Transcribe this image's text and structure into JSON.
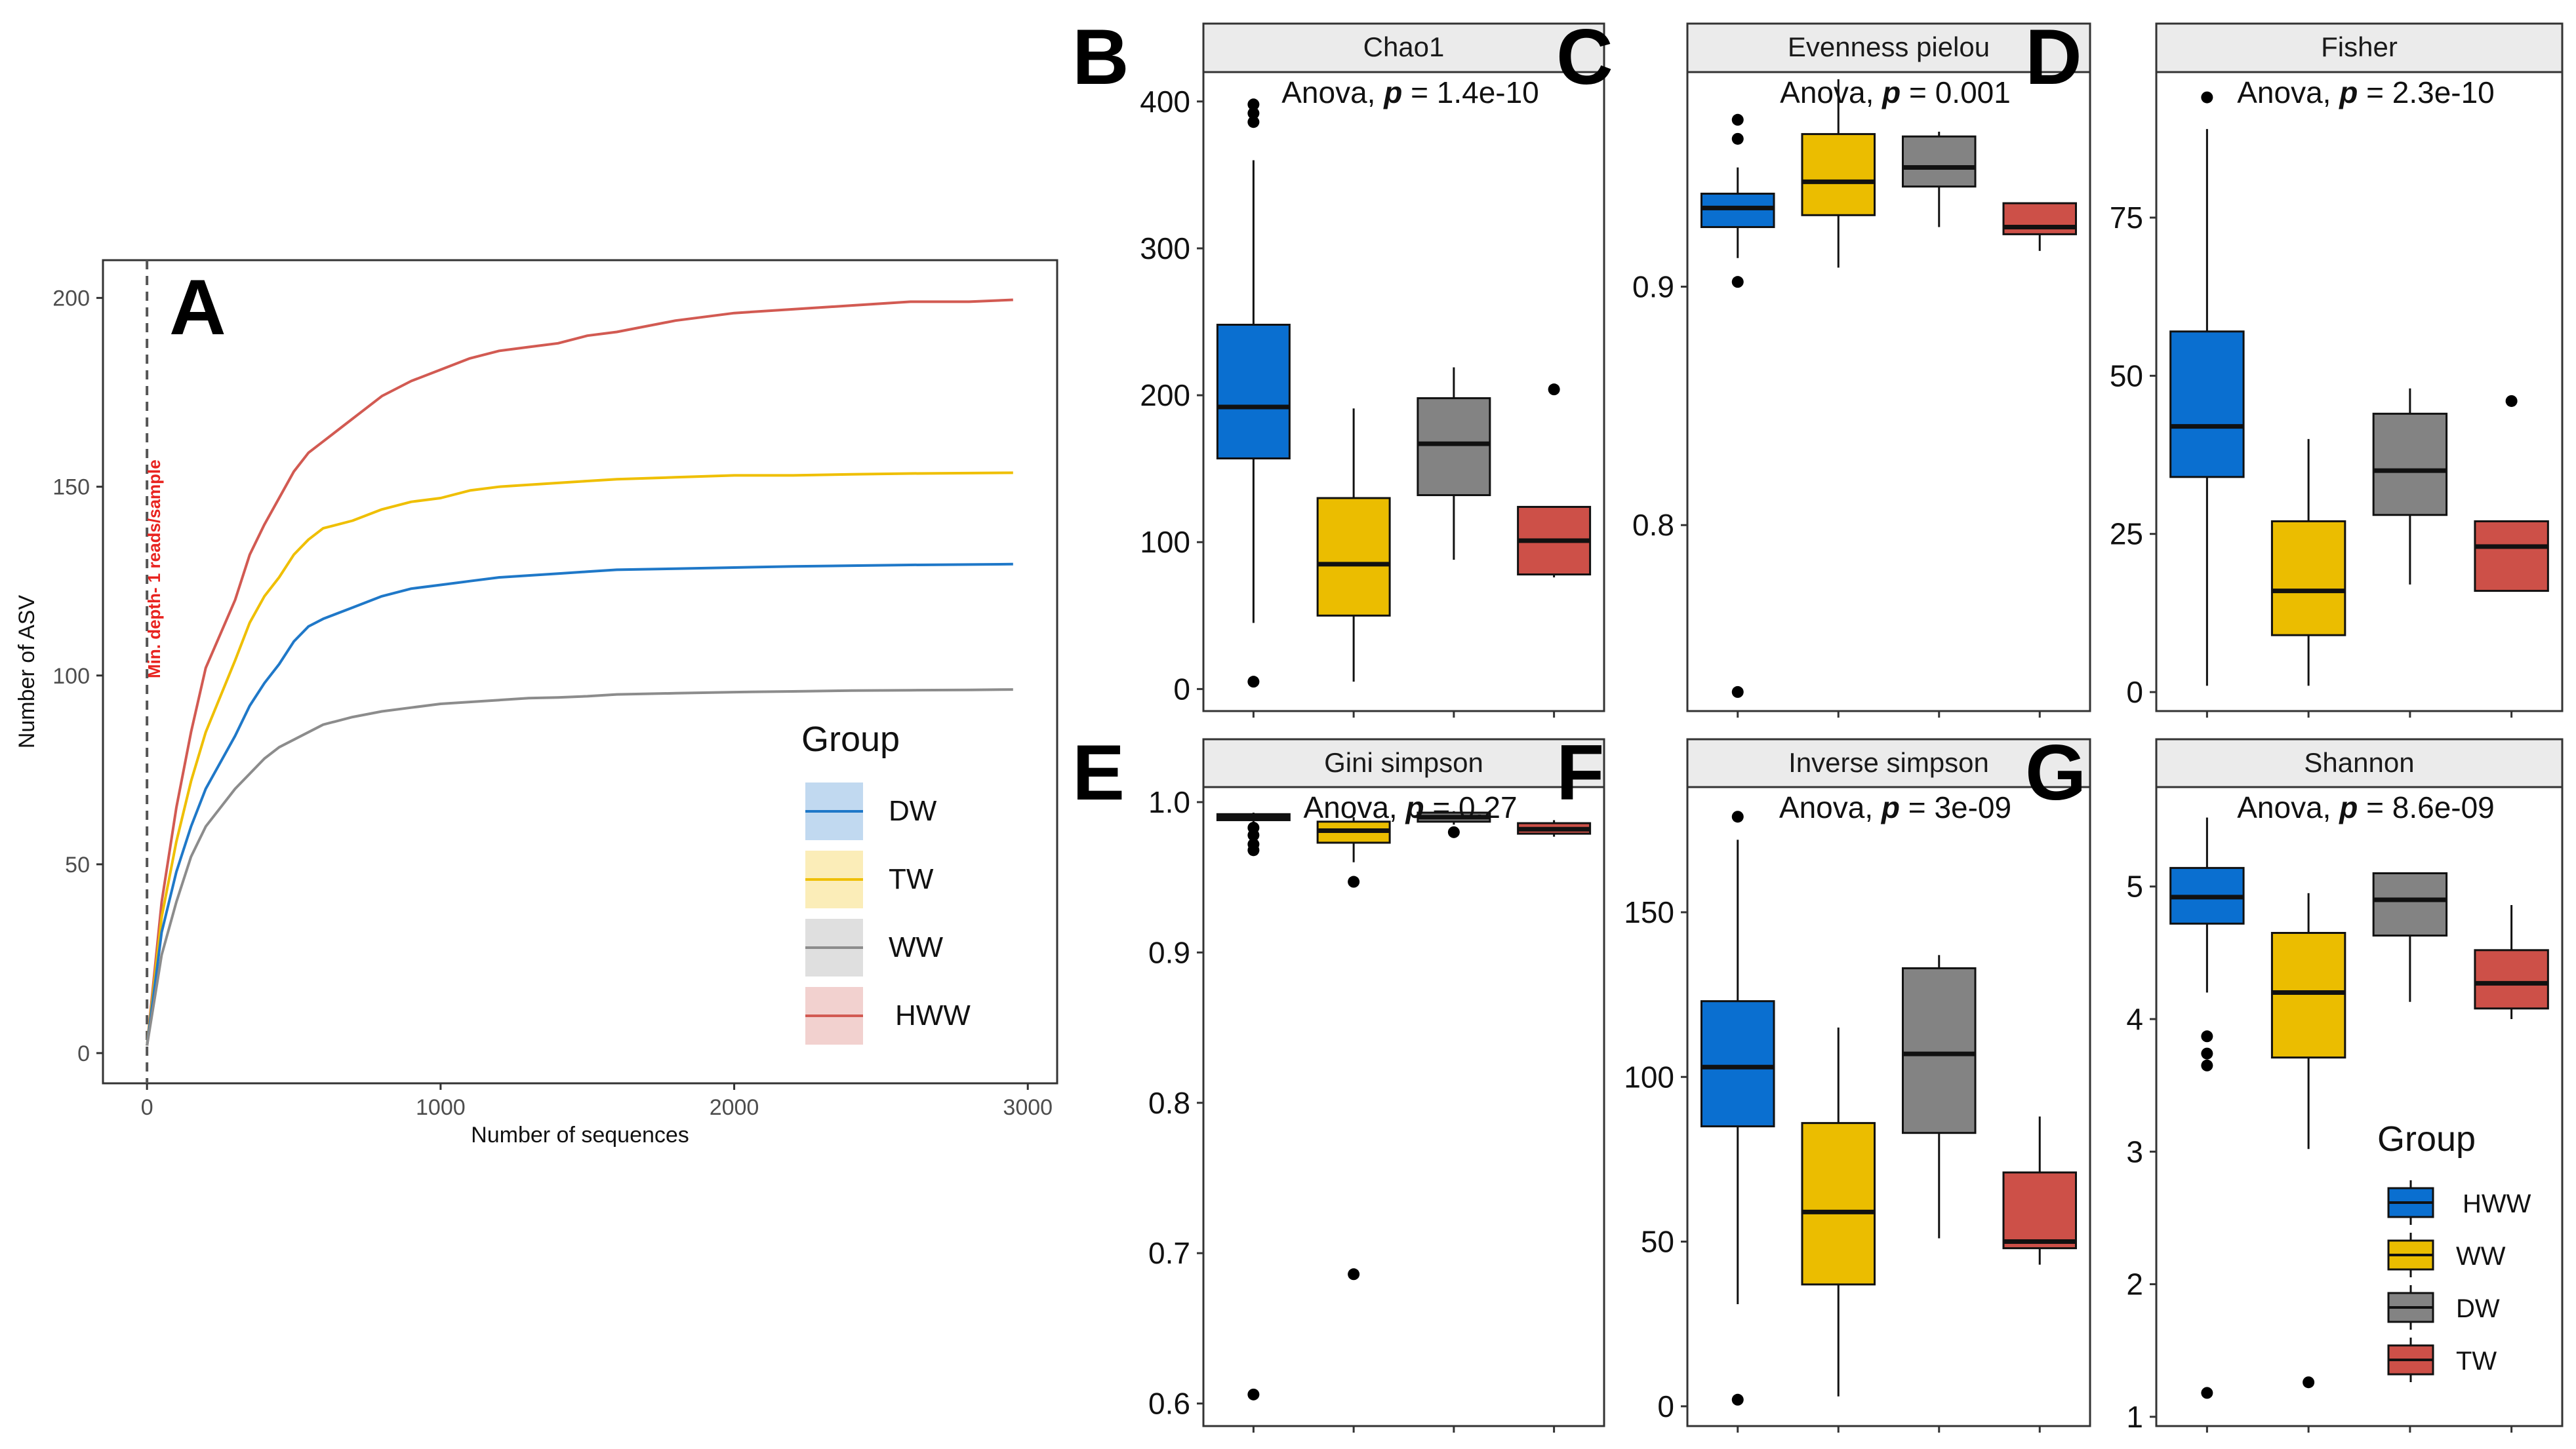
{
  "colors": {
    "DW": "#1f78c8",
    "TW": "#efbf00",
    "WW": "#8c8c8c",
    "HWW": "#d25a52",
    "box_DW": "#0a6fd0",
    "box_TW": "#ebbd00",
    "box_WW": "#838383",
    "box_HWW": "#cd5048",
    "strip": "#ebebeb",
    "vline": "#555555",
    "min_depth_text": "#e8231f"
  },
  "chart_data": [
    {
      "panel": "A",
      "type": "line",
      "xlabel": "Number of sequences",
      "ylabel": "Number of ASV",
      "xlim": [
        -150,
        3100
      ],
      "ylim": [
        -8,
        210
      ],
      "x_ticks": [
        0,
        1000,
        2000,
        3000
      ],
      "y_ticks": [
        0,
        50,
        100,
        150,
        200
      ],
      "x_tick_labels": [
        "0",
        "1000",
        "2000",
        "3000"
      ],
      "y_tick_labels": [
        "0",
        "50",
        "100",
        "150",
        "200"
      ],
      "vline": {
        "x": 0,
        "label": "Min. depth- 1 reads/sample"
      },
      "legend": {
        "title": "Group",
        "position": "bottom-right",
        "entries": [
          "DW",
          "TW",
          "WW",
          "HWW"
        ]
      },
      "x": [
        0,
        50,
        100,
        150,
        200,
        300,
        350,
        400,
        450,
        500,
        550,
        600,
        700,
        800,
        900,
        1000,
        1100,
        1200,
        1300,
        1400,
        1500,
        1600,
        1800,
        2000,
        2200,
        2400,
        2600,
        2800,
        2950
      ],
      "series": [
        {
          "name": "HWW",
          "values": [
            2,
            40,
            65,
            85,
            102,
            120,
            132,
            140,
            147,
            154,
            159,
            162,
            168,
            174,
            178,
            181,
            184,
            186,
            187,
            188,
            190,
            191,
            194,
            196,
            197,
            198,
            199,
            199,
            199.5
          ]
        },
        {
          "name": "TW",
          "values": [
            2,
            36,
            56,
            72,
            85,
            104,
            114,
            121,
            126,
            132,
            136,
            139,
            141,
            144,
            146,
            147,
            149,
            150,
            150.5,
            151,
            151.5,
            152,
            152.5,
            153,
            153,
            153.3,
            153.5,
            153.6,
            153.7
          ]
        },
        {
          "name": "DW",
          "values": [
            2,
            32,
            48,
            60,
            70,
            84,
            92,
            98,
            103,
            109,
            113,
            115,
            118,
            121,
            123,
            124,
            125,
            126,
            126.5,
            127,
            127.5,
            128,
            128.3,
            128.6,
            128.9,
            129.1,
            129.3,
            129.4,
            129.5
          ]
        },
        {
          "name": "WW",
          "values": [
            2,
            26,
            40,
            52,
            60,
            70,
            74,
            78,
            81,
            83,
            85,
            87,
            89,
            90.5,
            91.5,
            92.5,
            93,
            93.5,
            94,
            94.2,
            94.5,
            95,
            95.3,
            95.6,
            95.8,
            96,
            96.1,
            96.2,
            96.3
          ]
        }
      ]
    },
    {
      "panel": "B",
      "type": "box",
      "title": "Chao1",
      "stat_prefix": "Anova, ",
      "p_label": "p",
      "stat_value": " = 1.4e-10",
      "ylim": [
        -15,
        420
      ],
      "y_ticks": [
        0,
        100,
        200,
        300,
        400
      ],
      "y_tick_labels": [
        "0",
        "100",
        "200",
        "300",
        "400"
      ],
      "boxes": [
        {
          "q1": 157,
          "median": 192,
          "q3": 248,
          "wlo": 45,
          "whi": 360,
          "outliers": [
            5,
            386,
            392,
            398
          ]
        },
        {
          "q1": 50,
          "median": 85,
          "q3": 130,
          "wlo": 5,
          "whi": 191,
          "outliers": []
        },
        {
          "q1": 132,
          "median": 167,
          "q3": 198,
          "wlo": 88,
          "whi": 219,
          "outliers": []
        },
        {
          "q1": 78,
          "median": 101,
          "q3": 124,
          "wlo": 76,
          "whi": 124,
          "outliers": [
            204
          ]
        }
      ]
    },
    {
      "panel": "C",
      "type": "box",
      "title": "Evenness pielou",
      "stat_prefix": "Anova, ",
      "p_label": "p",
      "stat_value": " = 0.001",
      "ylim": [
        0.722,
        0.99
      ],
      "y_ticks": [
        0.8,
        0.9
      ],
      "y_tick_labels": [
        "0.8",
        "0.9"
      ],
      "boxes": [
        {
          "q1": 0.925,
          "median": 0.933,
          "q3": 0.939,
          "wlo": 0.912,
          "whi": 0.95,
          "outliers": [
            0.73,
            0.902,
            0.962,
            0.97
          ]
        },
        {
          "q1": 0.93,
          "median": 0.944,
          "q3": 0.964,
          "wlo": 0.908,
          "whi": 0.987,
          "outliers": []
        },
        {
          "q1": 0.942,
          "median": 0.95,
          "q3": 0.963,
          "wlo": 0.925,
          "whi": 0.965,
          "outliers": []
        },
        {
          "q1": 0.922,
          "median": 0.925,
          "q3": 0.935,
          "wlo": 0.915,
          "whi": 0.935,
          "outliers": []
        }
      ]
    },
    {
      "panel": "D",
      "type": "box",
      "title": "Fisher",
      "stat_prefix": "Anova, ",
      "p_label": "p",
      "stat_value": " = 2.3e-10",
      "ylim": [
        -3,
        98
      ],
      "y_ticks": [
        0,
        25,
        50,
        75
      ],
      "y_tick_labels": [
        "0",
        "25",
        "50",
        "75"
      ],
      "boxes": [
        {
          "q1": 34,
          "median": 42,
          "q3": 57,
          "wlo": 1,
          "whi": 89,
          "outliers": [
            94
          ]
        },
        {
          "q1": 9,
          "median": 16,
          "q3": 27,
          "wlo": 1,
          "whi": 40,
          "outliers": []
        },
        {
          "q1": 28,
          "median": 35,
          "q3": 44,
          "wlo": 17,
          "whi": 48,
          "outliers": []
        },
        {
          "q1": 16,
          "median": 23,
          "q3": 27,
          "wlo": 16,
          "whi": 27,
          "outliers": [
            46
          ]
        }
      ]
    },
    {
      "panel": "E",
      "type": "box",
      "title": "Gini simpson",
      "stat_prefix": "Anova, ",
      "p_label": "p",
      "stat_value": " = 0.27",
      "ylim": [
        0.585,
        1.01
      ],
      "y_ticks": [
        0.6,
        0.7,
        0.8,
        0.9,
        1.0
      ],
      "y_tick_labels": [
        "0.6",
        "0.7",
        "0.8",
        "0.9",
        "1.0"
      ],
      "boxes": [
        {
          "q1": 0.988,
          "median": 0.99,
          "q3": 0.992,
          "wlo": 0.985,
          "whi": 0.993,
          "outliers": [
            0.606,
            0.968,
            0.972,
            0.978,
            0.983
          ]
        },
        {
          "q1": 0.973,
          "median": 0.981,
          "q3": 0.987,
          "wlo": 0.96,
          "whi": 0.99,
          "outliers": [
            0.686,
            0.947
          ]
        },
        {
          "q1": 0.987,
          "median": 0.99,
          "q3": 0.993,
          "wlo": 0.985,
          "whi": 0.994,
          "outliers": [
            0.98
          ]
        },
        {
          "q1": 0.979,
          "median": 0.982,
          "q3": 0.986,
          "wlo": 0.977,
          "whi": 0.988,
          "outliers": []
        }
      ]
    },
    {
      "panel": "F",
      "type": "box",
      "title": "Inverse simpson",
      "stat_prefix": "Anova, ",
      "p_label": "p",
      "stat_value": " = 3e-09",
      "ylim": [
        -6,
        188
      ],
      "y_ticks": [
        0,
        50,
        100,
        150
      ],
      "y_tick_labels": [
        "0",
        "50",
        "100",
        "150"
      ],
      "boxes": [
        {
          "q1": 85,
          "median": 103,
          "q3": 123,
          "wlo": 31,
          "whi": 172,
          "outliers": [
            2,
            179
          ]
        },
        {
          "q1": 37,
          "median": 59,
          "q3": 86,
          "wlo": 3,
          "whi": 115,
          "outliers": []
        },
        {
          "q1": 83,
          "median": 107,
          "q3": 133,
          "wlo": 51,
          "whi": 137,
          "outliers": []
        },
        {
          "q1": 48,
          "median": 50,
          "q3": 71,
          "wlo": 43,
          "whi": 88,
          "outliers": []
        }
      ]
    },
    {
      "panel": "G",
      "type": "box",
      "title": "Shannon",
      "stat_prefix": "Anova, ",
      "p_label": "p",
      "stat_value": " = 8.6e-09",
      "ylim": [
        0.93,
        5.75
      ],
      "y_ticks": [
        1,
        2,
        3,
        4,
        5
      ],
      "y_tick_labels": [
        "1",
        "2",
        "3",
        "4",
        "5"
      ],
      "boxes": [
        {
          "q1": 4.72,
          "median": 4.92,
          "q3": 5.14,
          "wlo": 4.2,
          "whi": 5.52,
          "outliers": [
            1.18,
            3.65,
            3.74,
            3.87
          ]
        },
        {
          "q1": 3.71,
          "median": 4.2,
          "q3": 4.65,
          "wlo": 3.02,
          "whi": 4.95,
          "outliers": [
            1.26
          ]
        },
        {
          "q1": 4.63,
          "median": 4.9,
          "q3": 5.1,
          "wlo": 4.13,
          "whi": 5.1,
          "outliers": []
        },
        {
          "q1": 4.08,
          "median": 4.27,
          "q3": 4.52,
          "wlo": 4.0,
          "whi": 4.86,
          "outliers": []
        }
      ],
      "legend": {
        "title": "Group",
        "entries": [
          "HWW",
          "WW",
          "DW",
          "TW"
        ]
      }
    }
  ]
}
